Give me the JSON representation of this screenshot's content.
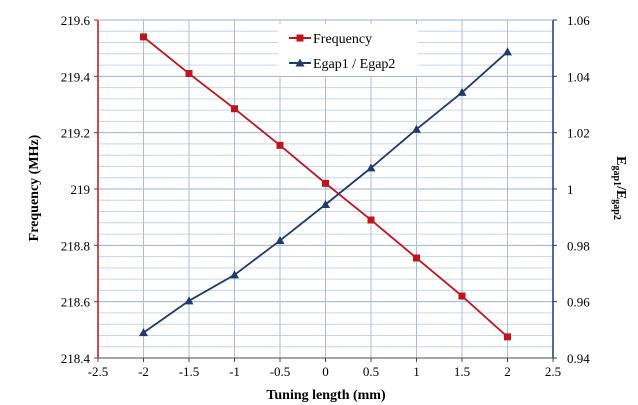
{
  "chart_data": {
    "type": "line",
    "x": [
      -2,
      -1.5,
      -1,
      -0.5,
      0,
      0.5,
      1,
      1.5,
      2
    ],
    "xlim": [
      -2.5,
      2.5
    ],
    "xticks": [
      "-2.5",
      "-2",
      "-1.5",
      "-1",
      "-0.5",
      "0",
      "0.5",
      "1",
      "1.5",
      "2",
      "2.5"
    ],
    "xlabel": "Tuning length (mm)",
    "ylabel_left": "Frequency  (MHz)",
    "ylim_left": [
      218.4,
      219.6
    ],
    "yticks_left": [
      "218.4",
      "218.6",
      "218.8",
      "219",
      "219.2",
      "219.4",
      "219.6"
    ],
    "ylabel_right_main": "E",
    "ylabel_right_sub1": "gap1",
    "ylabel_right_mid": "/E",
    "ylabel_right_sub2": "gap2",
    "ylim_right": [
      0.94,
      1.06
    ],
    "yticks_right": [
      "0.94",
      "0.96",
      "0.98",
      "1",
      "1.02",
      "1.04",
      "1.06"
    ],
    "grid": true,
    "legend_position": "top-center",
    "series": [
      {
        "name": "Frequency",
        "axis": "left",
        "color": "#c0141a",
        "marker": "square",
        "values": [
          219.54,
          219.41,
          219.285,
          219.155,
          219.02,
          218.89,
          218.755,
          218.62,
          218.475
        ]
      },
      {
        "name": "Egap1 / Egap2",
        "axis": "right",
        "color": "#1f3a6e",
        "marker": "triangle",
        "values": [
          0.949,
          0.9603,
          0.9695,
          0.9817,
          0.9945,
          1.0075,
          1.0212,
          1.0343,
          1.0487
        ]
      }
    ]
  }
}
